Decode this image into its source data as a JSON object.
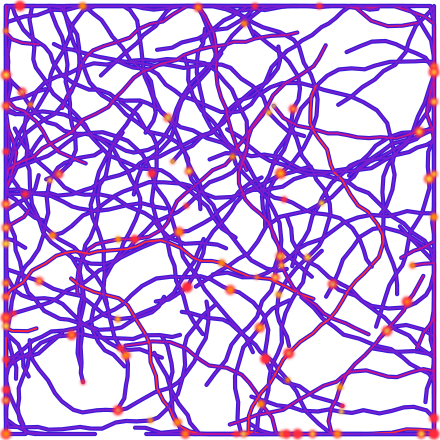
{
  "image": {
    "description_name": "heatmap-network-image",
    "background_color": "#ffffff",
    "palette": {
      "outline": "#3b1ad6",
      "strand_low": "#7a1fd0",
      "strand_mid": "#c8168f",
      "strand_high": "#ff2a3a",
      "hot": "#ff8a00",
      "peak": "#f6e23a",
      "core": "#8ee07a"
    }
  }
}
